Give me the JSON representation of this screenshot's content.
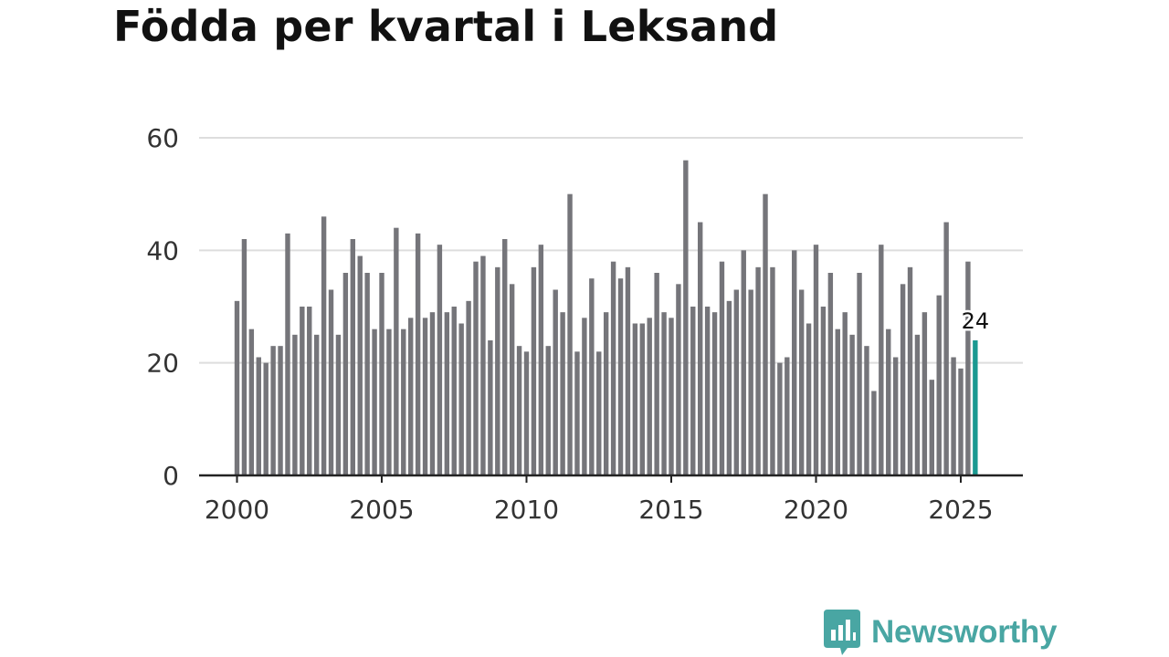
{
  "page": {
    "title": "Födda per kvartal i Leksand"
  },
  "brand": {
    "name": "Newsworthy",
    "color": "#49a6a3",
    "icon": "chart-bubble-icon"
  },
  "colors": {
    "bar": "#75757a",
    "highlight": "#1a9991",
    "grid": "#dddddd",
    "axis": "#222222"
  },
  "chart_data": {
    "type": "bar",
    "title": "Födda per kvartal i Leksand",
    "xlabel": "",
    "ylabel": "",
    "x_start_year": 2000,
    "quarters_per_year": 4,
    "ylim": [
      0,
      60
    ],
    "yticks": [
      "0",
      "20",
      "40",
      "60"
    ],
    "xticks": [
      "2000",
      "2005",
      "2010",
      "2015",
      "2020",
      "2025"
    ],
    "grid": true,
    "series": [
      {
        "name": "Födda",
        "values": [
          31,
          42,
          26,
          21,
          20,
          23,
          23,
          43,
          25,
          30,
          30,
          25,
          46,
          33,
          25,
          36,
          42,
          39,
          36,
          26,
          36,
          26,
          44,
          26,
          28,
          43,
          28,
          29,
          41,
          29,
          30,
          27,
          31,
          38,
          39,
          24,
          37,
          42,
          34,
          23,
          22,
          37,
          41,
          23,
          33,
          29,
          50,
          22,
          28,
          35,
          22,
          29,
          38,
          35,
          37,
          27,
          27,
          28,
          36,
          29,
          28,
          34,
          56,
          30,
          45,
          30,
          29,
          38,
          31,
          33,
          40,
          33,
          37,
          50,
          37,
          20,
          21,
          40,
          33,
          27,
          41,
          30,
          36,
          26,
          29,
          25,
          36,
          23,
          15,
          41,
          26,
          21,
          34,
          37,
          25,
          29,
          17,
          32,
          45,
          21,
          19,
          38,
          24
        ]
      }
    ],
    "highlight": {
      "index": 102,
      "label": "24"
    }
  }
}
